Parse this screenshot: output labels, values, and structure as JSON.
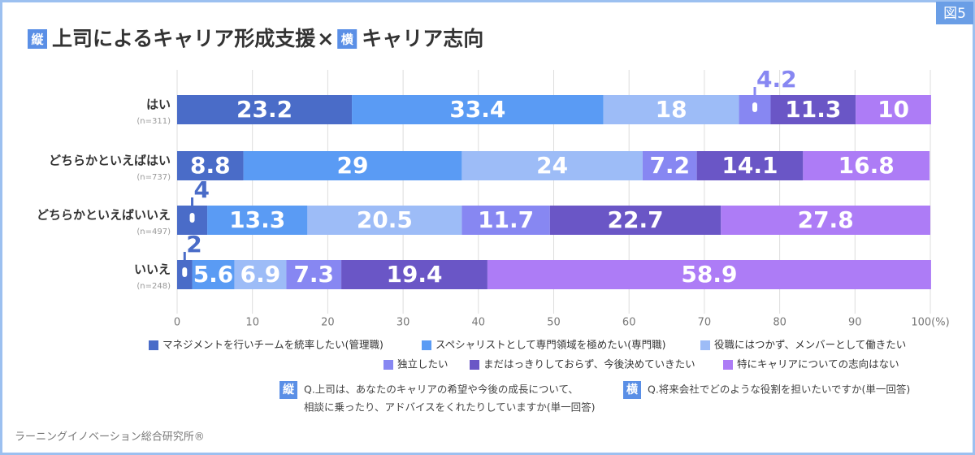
{
  "chart_data": {
    "type": "stacked-bar-horizontal",
    "figure_tag": "図5",
    "title_badge_y": "縦",
    "title_y": "上司によるキャリア形成支援",
    "title_sep": "×",
    "title_badge_x": "横",
    "title_x": "キャリア志向",
    "categories": [
      "はい",
      "どちらかといえばはい",
      "どちらかといえばいいえ",
      "いいえ"
    ],
    "sample_sizes": [
      "(n=311)",
      "(n=737)",
      "(n=497)",
      "(n=248)"
    ],
    "series": [
      {
        "name": "マネジメントを行いチームを統率したい(管理職)",
        "color": "#4a6cc8",
        "values": [
          23.2,
          8.8,
          4.0,
          2.0
        ]
      },
      {
        "name": "スペシャリストとして専門領域を極めたい(専門職)",
        "color": "#5a9bf4",
        "values": [
          33.4,
          29.0,
          13.3,
          5.6
        ]
      },
      {
        "name": "役職にはつかず、メンバーとして働きたい",
        "color": "#9dbcf7",
        "values": [
          18.0,
          24.0,
          20.5,
          6.9
        ]
      },
      {
        "name": "独立したい",
        "color": "#8787f2",
        "values": [
          4.2,
          7.2,
          11.7,
          7.3
        ]
      },
      {
        "name": "まだはっきりしておらず、今後決めていきたい",
        "color": "#6a56c6",
        "values": [
          11.3,
          14.1,
          22.7,
          19.4
        ]
      },
      {
        "name": "特にキャリアについての志向はない",
        "color": "#ad7cf6",
        "values": [
          10.0,
          16.8,
          27.8,
          58.9
        ]
      }
    ],
    "xlim": [
      0,
      100
    ],
    "xticks": [
      0,
      10,
      20,
      30,
      40,
      50,
      60,
      70,
      80,
      90,
      {
        "value": 100,
        "label": "100(%)"
      }
    ],
    "grid": true,
    "notes": [
      {
        "badge": "縦",
        "lines": [
          "Q.上司は、あなたのキャリアの希望や今後の成長について、",
          "相談に乗ったり、アドバイスをくれたりしていますか(単一回答)"
        ]
      },
      {
        "badge": "横",
        "lines": [
          "Q.将来会社でどのような役割を担いたいですか(単一回答)"
        ]
      }
    ],
    "source": "ラーニングイノベーション総合研究所®"
  }
}
